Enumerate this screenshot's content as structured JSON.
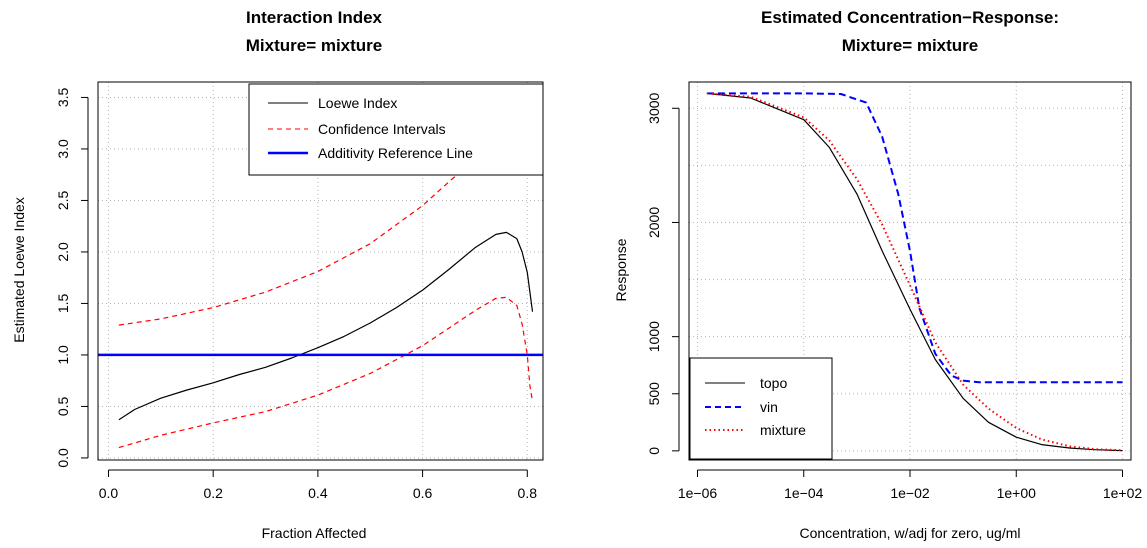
{
  "colors": {
    "loewe": "#000000",
    "ci": "#ff0000",
    "additivity": "#0000ff",
    "topo": "#000000",
    "vin": "#0000ff",
    "mixture": "#ff0000"
  },
  "chart_data": [
    {
      "type": "line",
      "title_line1": "Interaction Index",
      "title_line2": "Mixture= mixture",
      "xlabel": "Fraction Affected",
      "ylabel": "Estimated Loewe Index",
      "xlim": [
        -0.02,
        0.83
      ],
      "ylim": [
        -0.02,
        3.65
      ],
      "x_ticks": [
        0.0,
        0.2,
        0.4,
        0.6,
        0.8
      ],
      "x_tick_labels": [
        "0.0",
        "0.2",
        "0.4",
        "0.6",
        "0.8"
      ],
      "y_ticks": [
        0.0,
        0.5,
        1.0,
        1.5,
        2.0,
        2.5,
        3.0,
        3.5
      ],
      "y_tick_labels": [
        "0.0",
        "0.5",
        "1.0",
        "1.5",
        "2.0",
        "2.5",
        "3.0",
        "3.5"
      ],
      "grid": true,
      "legend_position": "top-right",
      "legend": [
        "Loewe Index",
        "Confidence Intervals",
        "Additivity Reference Line"
      ],
      "series": [
        {
          "name": "Loewe Index",
          "style": "solid",
          "color": "#000000",
          "x": [
            0.02,
            0.05,
            0.1,
            0.15,
            0.2,
            0.25,
            0.3,
            0.35,
            0.4,
            0.45,
            0.5,
            0.55,
            0.6,
            0.65,
            0.7,
            0.74,
            0.76,
            0.78,
            0.79,
            0.8,
            0.81
          ],
          "y": [
            0.37,
            0.47,
            0.58,
            0.66,
            0.73,
            0.81,
            0.88,
            0.97,
            1.07,
            1.18,
            1.31,
            1.46,
            1.63,
            1.83,
            2.04,
            2.17,
            2.19,
            2.13,
            2.0,
            1.8,
            1.42
          ]
        },
        {
          "name": "Confidence Intervals",
          "style": "dashed",
          "color": "#ff0000",
          "x": [
            0.02,
            0.1,
            0.2,
            0.3,
            0.4,
            0.5,
            0.6,
            0.65,
            0.7,
            0.74,
            0.76,
            0.78,
            0.79,
            0.8
          ],
          "y": [
            1.29,
            1.35,
            1.46,
            1.61,
            1.81,
            2.08,
            2.45,
            2.68,
            2.9,
            3.05,
            3.1,
            3.05,
            2.95,
            2.8
          ]
        },
        {
          "name": "Confidence Intervals lower",
          "style": "dashed",
          "color": "#ff0000",
          "x": [
            0.02,
            0.1,
            0.2,
            0.3,
            0.4,
            0.5,
            0.6,
            0.65,
            0.7,
            0.74,
            0.76,
            0.78,
            0.79,
            0.8,
            0.805,
            0.81
          ],
          "y": [
            0.1,
            0.22,
            0.34,
            0.45,
            0.61,
            0.82,
            1.09,
            1.26,
            1.43,
            1.55,
            1.56,
            1.48,
            1.3,
            1.0,
            0.7,
            0.55
          ]
        },
        {
          "name": "Confidence Intervals upper spike",
          "style": "dashed",
          "color": "#ff0000",
          "x": [
            0.8,
            0.805,
            0.81
          ],
          "y": [
            2.8,
            3.1,
            3.52
          ]
        },
        {
          "name": "Additivity Reference Line",
          "style": "solid-thick",
          "color": "#0000ff",
          "x": [
            -0.02,
            0.83
          ],
          "y": [
            1.0,
            1.0
          ]
        }
      ]
    },
    {
      "type": "line",
      "title_line1": "Estimated Concentration−Response:",
      "title_line2": "Mixture= mixture",
      "xlabel": "Concentration, w/adj for zero, ug/ml",
      "ylabel": "Response",
      "x_scale": "log10",
      "xlim": [
        1e-06,
        100
      ],
      "ylim": [
        -80,
        3230
      ],
      "x_ticks": [
        1e-06,
        0.0001,
        0.01,
        1,
        100
      ],
      "x_tick_labels": [
        "1e−06",
        "1e−04",
        "1e−02",
        "1e+00",
        "1e+02"
      ],
      "y_ticks": [
        0,
        500,
        1000,
        2000,
        3000
      ],
      "y_tick_labels": [
        "0",
        "500",
        "1000",
        "2000",
        "3000"
      ],
      "grid_y": [
        0,
        500,
        1000,
        1500,
        2000,
        2500,
        3000
      ],
      "grid": true,
      "legend_position": "bottom-left",
      "legend": [
        "topo",
        "vin",
        "mixture"
      ],
      "series": [
        {
          "name": "topo",
          "style": "solid",
          "color": "#000000",
          "x": [
            1.5e-06,
            1e-05,
            0.0001,
            0.0003,
            0.001,
            0.003,
            0.01,
            0.03,
            0.1,
            0.3,
            1,
            3,
            10,
            30,
            100
          ],
          "y": [
            3130,
            3090,
            2900,
            2660,
            2250,
            1750,
            1240,
            800,
            460,
            250,
            120,
            55,
            25,
            10,
            2
          ]
        },
        {
          "name": "vin",
          "style": "dashed",
          "color": "#0000ff",
          "x": [
            1.5e-06,
            0.0001,
            0.0005,
            0.0015,
            0.003,
            0.006,
            0.01,
            0.015,
            0.03,
            0.06,
            0.1,
            0.2,
            1,
            10,
            100
          ],
          "y": [
            3130,
            3130,
            3125,
            3050,
            2750,
            2250,
            1750,
            1250,
            850,
            660,
            615,
            600,
            600,
            600,
            600
          ]
        },
        {
          "name": "mixture",
          "style": "dotted",
          "color": "#ff0000",
          "x": [
            1.5e-06,
            1e-05,
            0.0001,
            0.0003,
            0.001,
            0.003,
            0.01,
            0.03,
            0.1,
            0.3,
            1,
            3,
            10,
            30,
            100
          ],
          "y": [
            3130,
            3100,
            2920,
            2720,
            2380,
            1980,
            1450,
            950,
            580,
            370,
            200,
            100,
            40,
            15,
            5
          ]
        }
      ]
    }
  ]
}
